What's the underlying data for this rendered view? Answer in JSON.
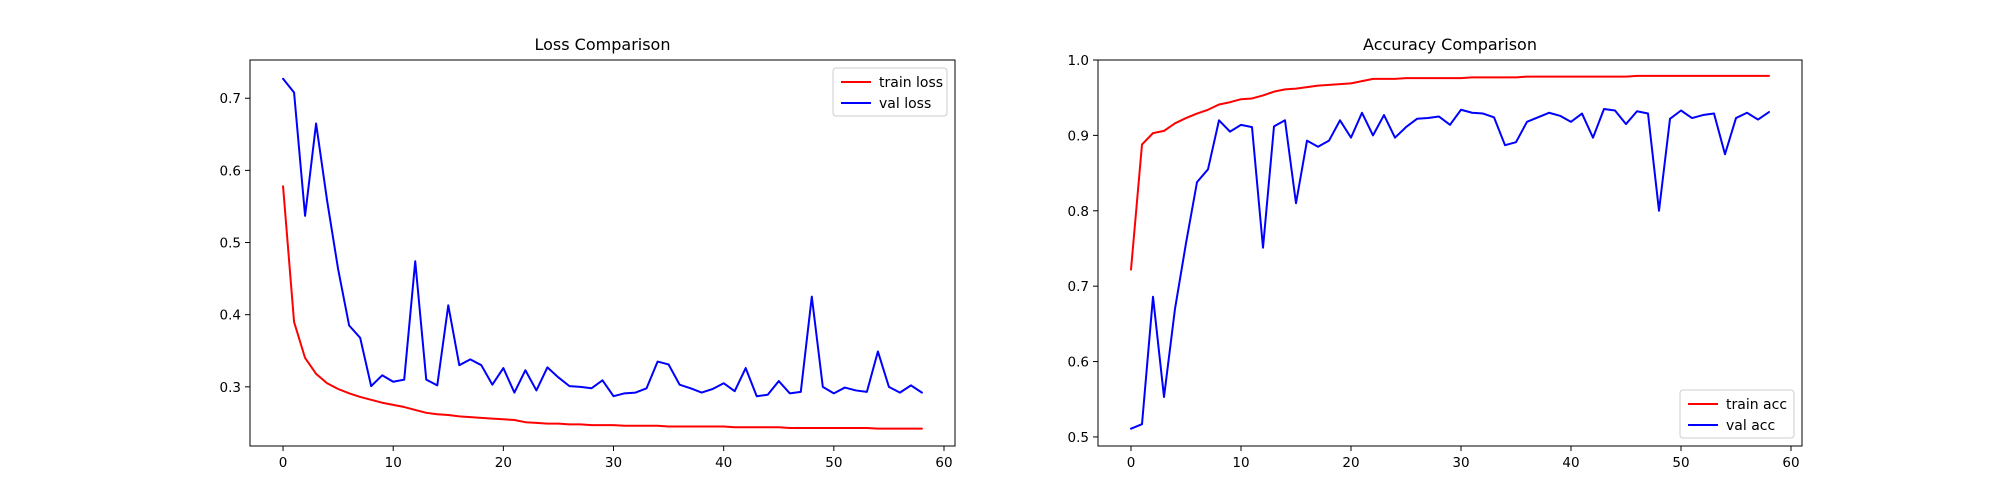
{
  "chart_data": [
    {
      "type": "line",
      "title": "Loss Comparison",
      "xlabel": "",
      "ylabel": "",
      "xlim": [
        -3,
        61
      ],
      "ylim": [
        0.218,
        0.753
      ],
      "xticks": [
        0,
        10,
        20,
        30,
        40,
        50,
        60
      ],
      "yticks": [
        0.3,
        0.4,
        0.5,
        0.6,
        0.7
      ],
      "ytick_decimals": 1,
      "grid": false,
      "legend": "top-right",
      "series": [
        {
          "name": "train loss",
          "color": "#ff0000",
          "x": [
            0,
            1,
            2,
            3,
            4,
            5,
            6,
            7,
            8,
            9,
            10,
            11,
            12,
            13,
            14,
            15,
            16,
            17,
            18,
            19,
            20,
            21,
            22,
            23,
            24,
            25,
            26,
            27,
            28,
            29,
            30,
            31,
            32,
            33,
            34,
            35,
            36,
            37,
            38,
            39,
            40,
            41,
            42,
            43,
            44,
            45,
            46,
            47,
            48,
            49,
            50,
            51,
            52,
            53,
            54,
            55,
            56,
            57,
            58
          ],
          "values": [
            0.578,
            0.39,
            0.34,
            0.318,
            0.305,
            0.297,
            0.291,
            0.286,
            0.282,
            0.278,
            0.275,
            0.272,
            0.268,
            0.264,
            0.262,
            0.261,
            0.259,
            0.258,
            0.257,
            0.256,
            0.255,
            0.254,
            0.251,
            0.25,
            0.249,
            0.249,
            0.248,
            0.248,
            0.247,
            0.247,
            0.247,
            0.246,
            0.246,
            0.246,
            0.246,
            0.245,
            0.245,
            0.245,
            0.245,
            0.245,
            0.245,
            0.244,
            0.244,
            0.244,
            0.244,
            0.244,
            0.243,
            0.243,
            0.243,
            0.243,
            0.243,
            0.243,
            0.243,
            0.243,
            0.242,
            0.242,
            0.242,
            0.242,
            0.242
          ]
        },
        {
          "name": "val loss",
          "color": "#0000ff",
          "x": [
            0,
            1,
            2,
            3,
            4,
            5,
            6,
            7,
            8,
            9,
            10,
            11,
            12,
            13,
            14,
            15,
            16,
            17,
            18,
            19,
            20,
            21,
            22,
            23,
            24,
            25,
            26,
            27,
            28,
            29,
            30,
            31,
            32,
            33,
            34,
            35,
            36,
            37,
            38,
            39,
            40,
            41,
            42,
            43,
            44,
            45,
            46,
            47,
            48,
            49,
            50,
            51,
            52,
            53,
            54,
            55,
            56,
            57,
            58
          ],
          "values": [
            0.727,
            0.708,
            0.537,
            0.665,
            0.558,
            0.463,
            0.385,
            0.368,
            0.301,
            0.316,
            0.307,
            0.31,
            0.474,
            0.31,
            0.302,
            0.413,
            0.33,
            0.338,
            0.33,
            0.303,
            0.326,
            0.292,
            0.323,
            0.295,
            0.327,
            0.313,
            0.301,
            0.3,
            0.298,
            0.309,
            0.287,
            0.291,
            0.292,
            0.298,
            0.335,
            0.331,
            0.303,
            0.298,
            0.292,
            0.297,
            0.305,
            0.294,
            0.326,
            0.287,
            0.289,
            0.308,
            0.291,
            0.293,
            0.425,
            0.3,
            0.291,
            0.299,
            0.295,
            0.293,
            0.349,
            0.3,
            0.292,
            0.302,
            0.292
          ]
        }
      ]
    },
    {
      "type": "line",
      "title": "Accuracy Comparison",
      "xlabel": "",
      "ylabel": "",
      "xlim": [
        -3,
        61
      ],
      "ylim": [
        0.488,
        1.0
      ],
      "xticks": [
        0,
        10,
        20,
        30,
        40,
        50,
        60
      ],
      "yticks": [
        0.5,
        0.6,
        0.7,
        0.8,
        0.9,
        1.0
      ],
      "ytick_decimals": 1,
      "grid": false,
      "legend": "bottom-right",
      "series": [
        {
          "name": "train acc",
          "color": "#ff0000",
          "x": [
            0,
            1,
            2,
            3,
            4,
            5,
            6,
            7,
            8,
            9,
            10,
            11,
            12,
            13,
            14,
            15,
            16,
            17,
            18,
            19,
            20,
            21,
            22,
            23,
            24,
            25,
            26,
            27,
            28,
            29,
            30,
            31,
            32,
            33,
            34,
            35,
            36,
            37,
            38,
            39,
            40,
            41,
            42,
            43,
            44,
            45,
            46,
            47,
            48,
            49,
            50,
            51,
            52,
            53,
            54,
            55,
            56,
            57,
            58
          ],
          "values": [
            0.722,
            0.888,
            0.903,
            0.906,
            0.916,
            0.923,
            0.929,
            0.934,
            0.941,
            0.944,
            0.948,
            0.949,
            0.953,
            0.958,
            0.961,
            0.962,
            0.964,
            0.966,
            0.967,
            0.968,
            0.969,
            0.972,
            0.975,
            0.975,
            0.975,
            0.976,
            0.976,
            0.976,
            0.976,
            0.976,
            0.976,
            0.977,
            0.977,
            0.977,
            0.977,
            0.977,
            0.978,
            0.978,
            0.978,
            0.978,
            0.978,
            0.978,
            0.978,
            0.978,
            0.978,
            0.978,
            0.979,
            0.979,
            0.979,
            0.979,
            0.979,
            0.979,
            0.979,
            0.979,
            0.979,
            0.979,
            0.979,
            0.979,
            0.979
          ]
        },
        {
          "name": "val acc",
          "color": "#0000ff",
          "x": [
            0,
            1,
            2,
            3,
            4,
            5,
            6,
            7,
            8,
            9,
            10,
            11,
            12,
            13,
            14,
            15,
            16,
            17,
            18,
            19,
            20,
            21,
            22,
            23,
            24,
            25,
            26,
            27,
            28,
            29,
            30,
            31,
            32,
            33,
            34,
            35,
            36,
            37,
            38,
            39,
            40,
            41,
            42,
            43,
            44,
            45,
            46,
            47,
            48,
            49,
            50,
            51,
            52,
            53,
            54,
            55,
            56,
            57,
            58
          ],
          "values": [
            0.511,
            0.517,
            0.686,
            0.553,
            0.67,
            0.757,
            0.838,
            0.855,
            0.92,
            0.905,
            0.914,
            0.911,
            0.751,
            0.912,
            0.92,
            0.81,
            0.893,
            0.885,
            0.893,
            0.92,
            0.897,
            0.93,
            0.9,
            0.927,
            0.897,
            0.911,
            0.922,
            0.923,
            0.925,
            0.914,
            0.934,
            0.93,
            0.929,
            0.924,
            0.887,
            0.891,
            0.918,
            0.924,
            0.93,
            0.926,
            0.918,
            0.929,
            0.897,
            0.935,
            0.933,
            0.915,
            0.932,
            0.929,
            0.8,
            0.922,
            0.933,
            0.923,
            0.927,
            0.929,
            0.875,
            0.923,
            0.93,
            0.921,
            0.931
          ]
        }
      ]
    }
  ]
}
